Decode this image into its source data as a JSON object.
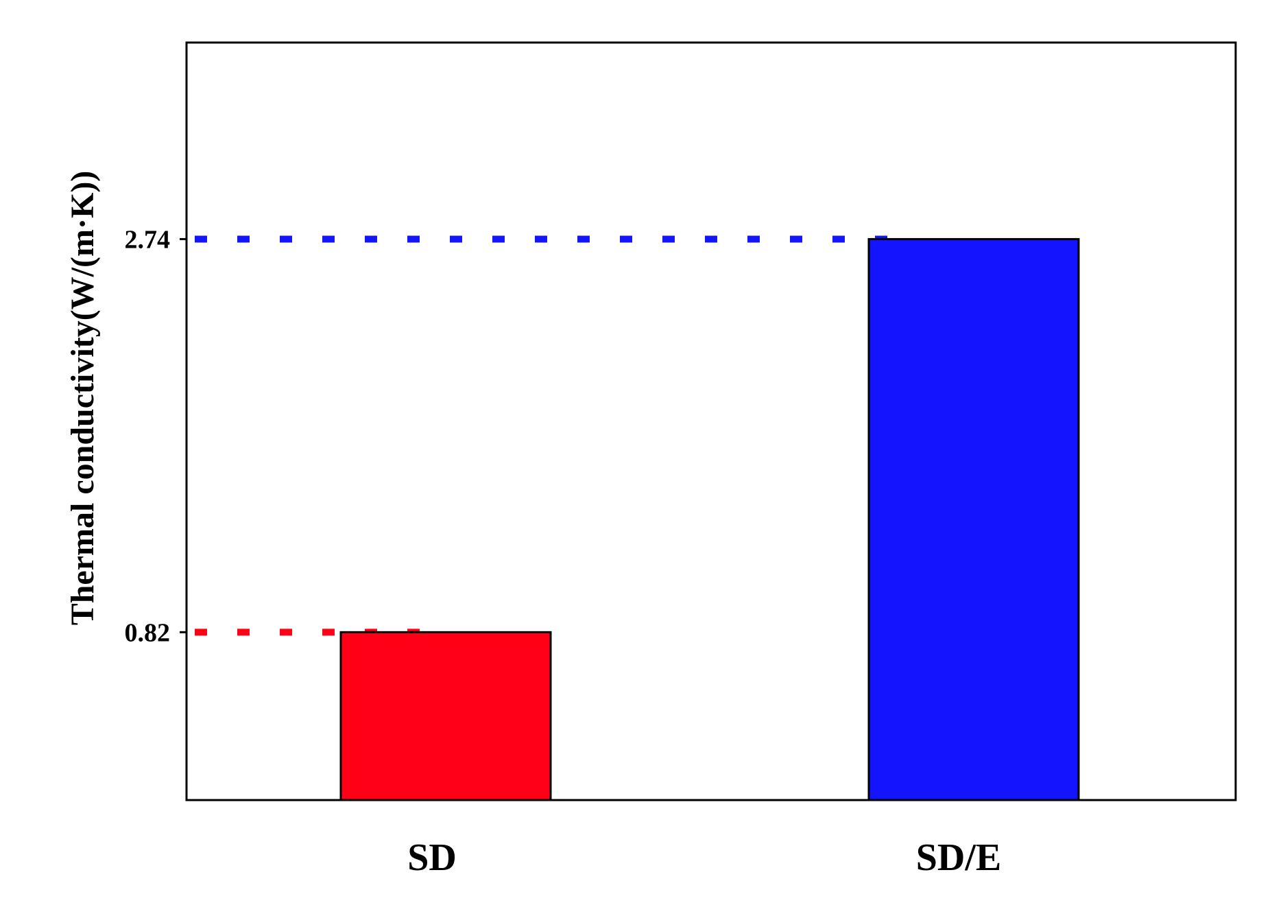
{
  "chart_data": {
    "type": "bar",
    "title": "",
    "xlabel": "",
    "ylabel": "Thermal conductivity(W/(m·K))",
    "categories": [
      "SD",
      "SD/E"
    ],
    "values": [
      0.82,
      2.74
    ],
    "colors": [
      "#ff0017",
      "#1414ff"
    ],
    "yticks": [
      "0.82",
      "2.74"
    ],
    "ylim": [
      0,
      3.7
    ],
    "grid": false,
    "reference_lines": [
      {
        "value": 0.82,
        "color": "#ff0017",
        "style": "dotted"
      },
      {
        "value": 2.74,
        "color": "#1414ff",
        "style": "dotted"
      }
    ]
  }
}
